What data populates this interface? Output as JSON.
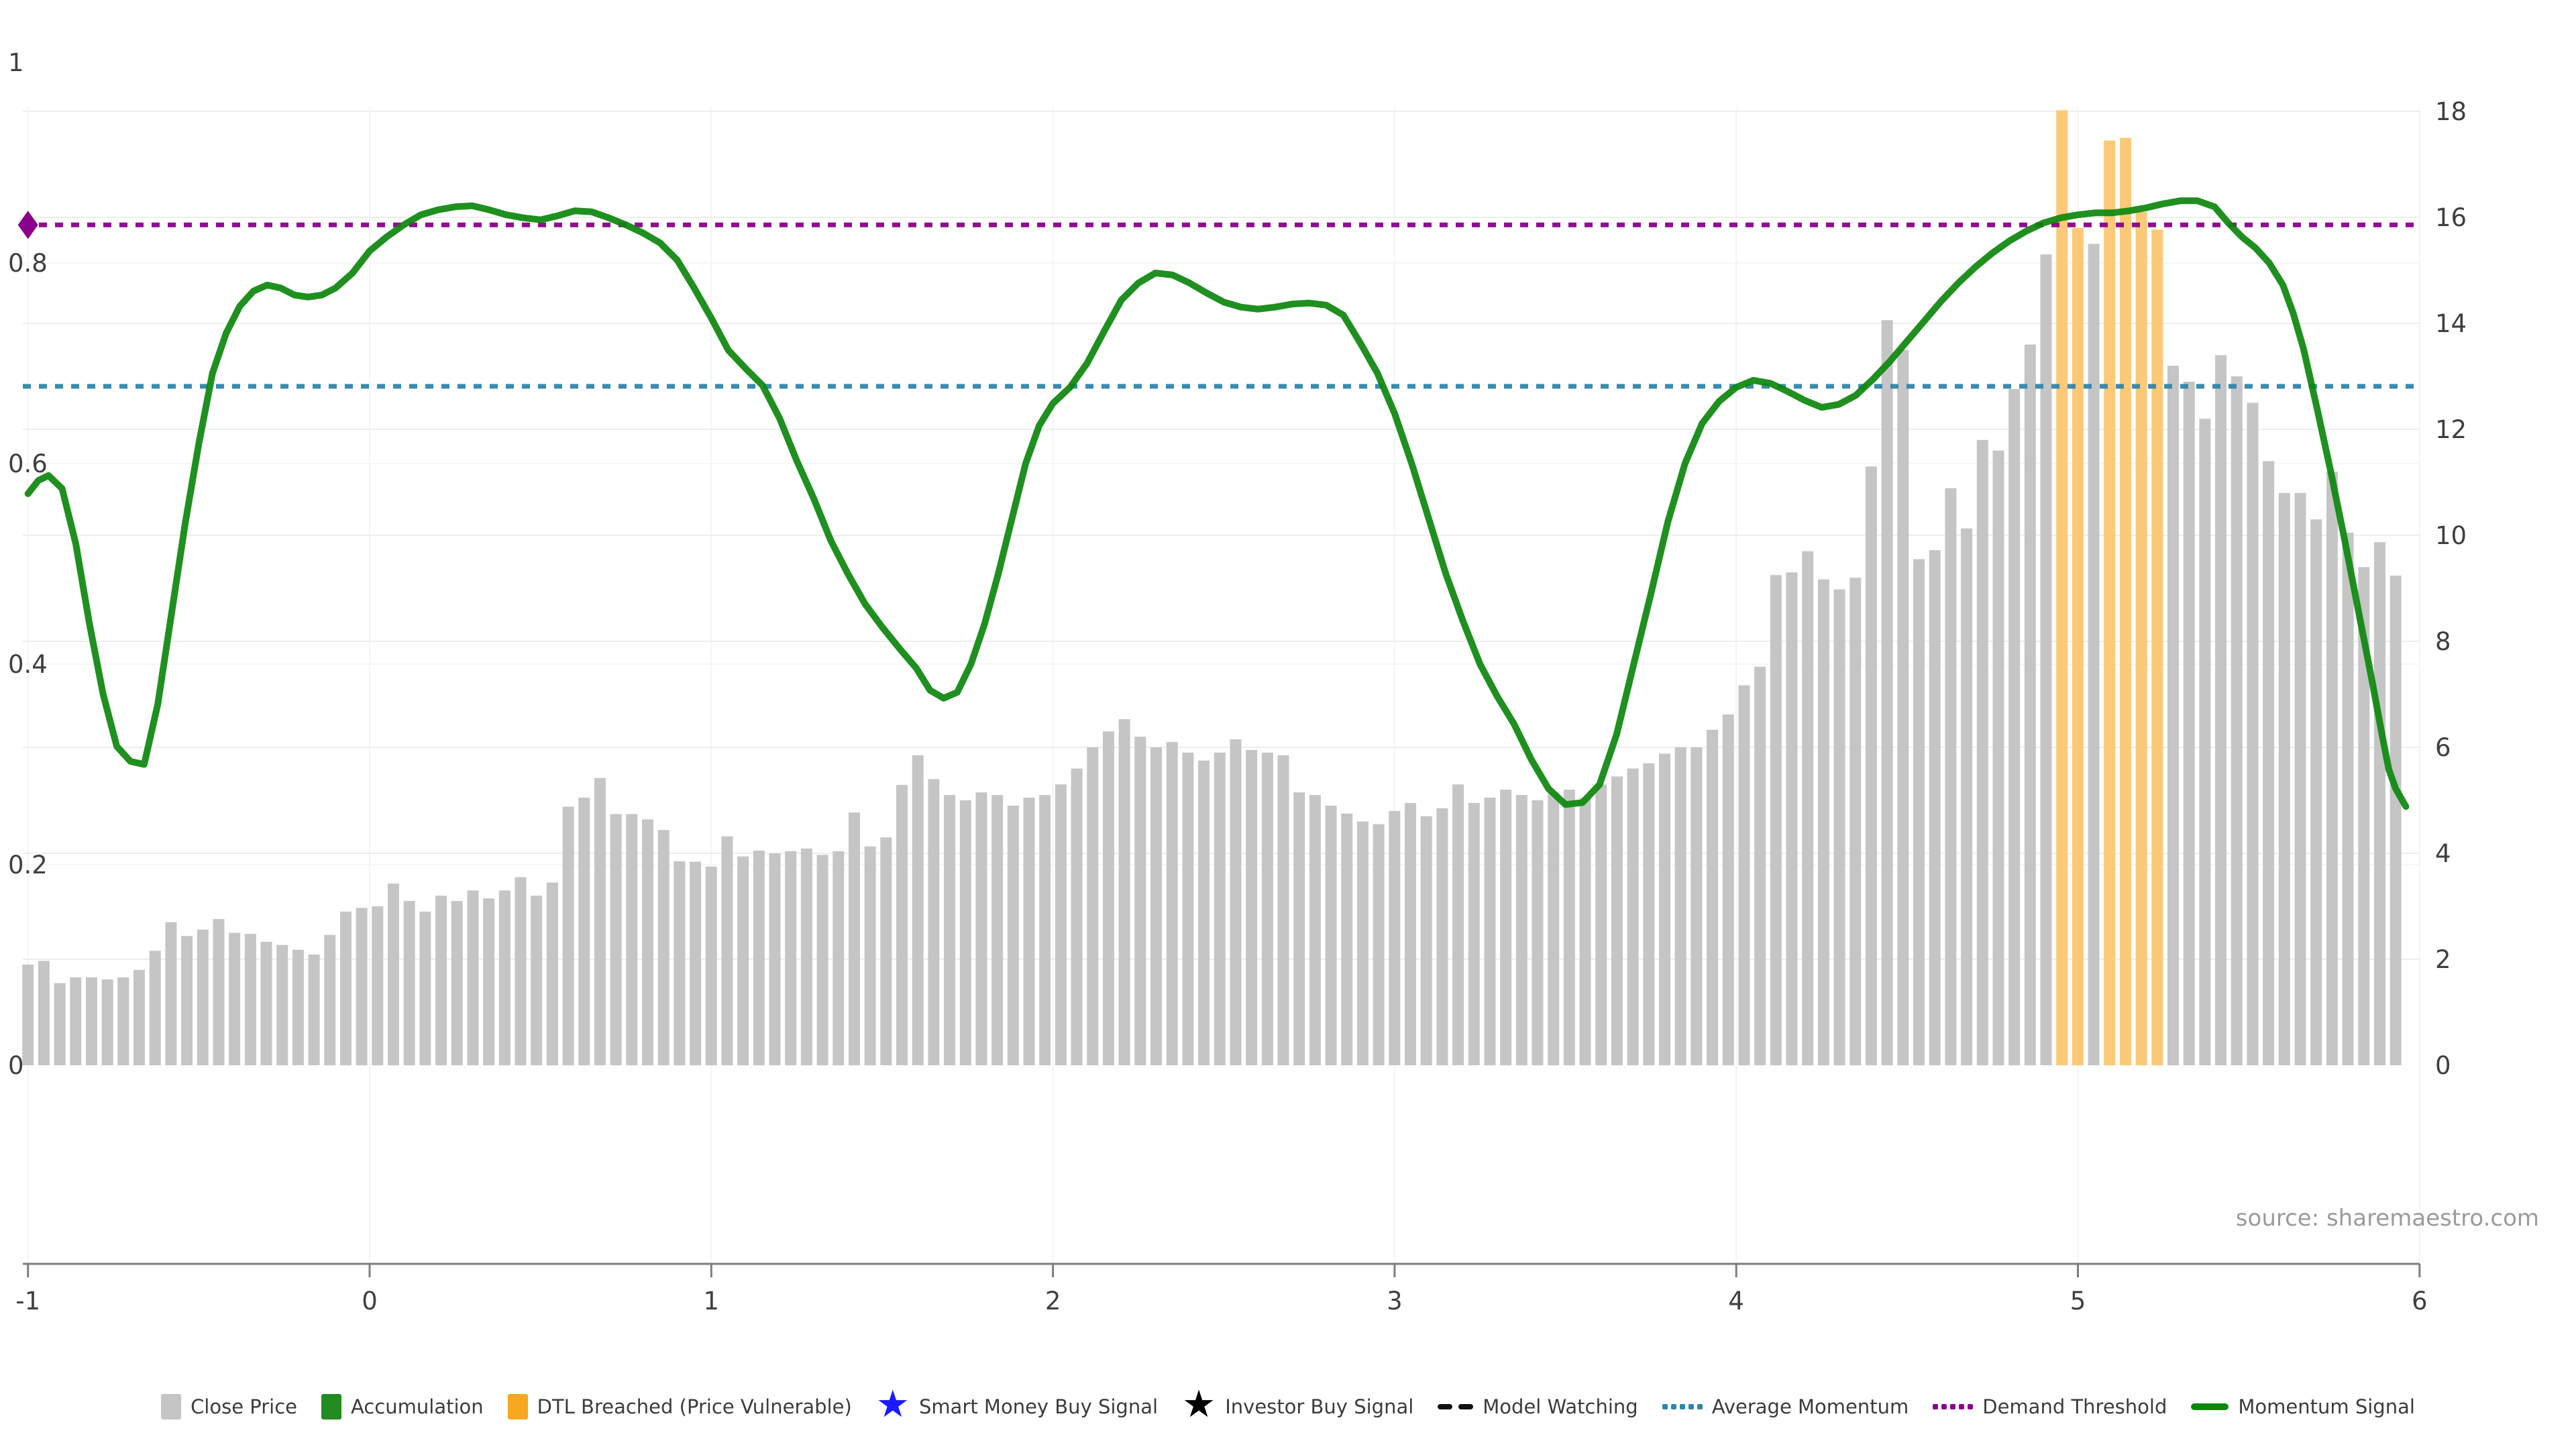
{
  "source_note": "source: sharemaestro.com",
  "colors": {
    "close_price_bar": "#c5c5c5",
    "dtl_breached_bar": "#fbc977",
    "dtl_breached_legend": "#f6a81f",
    "accumulation": "#228b22",
    "momentum_line": "#0c870c",
    "average_momentum": "#2e86ab",
    "demand_threshold": "#8b008b",
    "smart_money_star": "#1a1aff",
    "investor_star": "#000000",
    "model_watching": "#111111",
    "axis_line": "#7d7d7d",
    "axis_text": "#3f3f3f",
    "grid_right": "#eeeeee",
    "grid_left": "#f6f6f6",
    "grid_vertical": "#f0f5f5",
    "source_text": "#9b9b9b"
  },
  "chart_data": {
    "type": "bar",
    "title": "",
    "xlabel": "",
    "ylabel": "",
    "x_axis": {
      "range": [
        -1,
        6
      ],
      "ticks": [
        -1,
        0,
        1,
        2,
        3,
        4,
        5,
        6
      ],
      "tick_labels": [
        "-1",
        "0",
        "1",
        "2",
        "3",
        "4",
        "5",
        "6"
      ]
    },
    "left_axis": {
      "range": [
        0,
        1
      ],
      "ticks": [
        0,
        0.2,
        0.4,
        0.6,
        0.8,
        1
      ],
      "tick_labels": [
        "0",
        "0.2",
        "0.4",
        "0.6",
        "0.8",
        "1"
      ]
    },
    "right_axis": {
      "range": [
        0,
        18
      ],
      "ticks": [
        0,
        2,
        4,
        6,
        8,
        10,
        12,
        14,
        16,
        18
      ],
      "tick_labels": [
        "0",
        "2",
        "4",
        "6",
        "8",
        "10",
        "12",
        "14",
        "16",
        "18"
      ]
    },
    "close_price_bars": {
      "name": "Close Price",
      "axis": "right",
      "x_start": -1.0,
      "x_step": 0.04651,
      "values": [
        1.9,
        1.97,
        1.55,
        1.66,
        1.66,
        1.62,
        1.66,
        1.8,
        2.16,
        2.7,
        2.44,
        2.56,
        2.76,
        2.5,
        2.48,
        2.33,
        2.27,
        2.18,
        2.09,
        2.46,
        2.9,
        2.97,
        3.0,
        3.43,
        3.1,
        2.9,
        3.2,
        3.1,
        3.3,
        3.15,
        3.3,
        3.55,
        3.2,
        3.45,
        4.88,
        5.05,
        5.42,
        4.74,
        4.74,
        4.64,
        4.44,
        3.85,
        3.84,
        3.75,
        4.32,
        3.94,
        4.05,
        4.0,
        4.04,
        4.09,
        3.97,
        4.04,
        4.77,
        4.13,
        4.3,
        5.29,
        5.85,
        5.4,
        5.1,
        5.0,
        5.15,
        5.1,
        4.9,
        5.05,
        5.1,
        5.3,
        5.6,
        6.0,
        6.3,
        6.53,
        6.2,
        6.0,
        6.1,
        5.9,
        5.75,
        5.9,
        6.15,
        5.95,
        5.9,
        5.85,
        5.15,
        5.1,
        4.9,
        4.75,
        4.6,
        4.55,
        4.8,
        4.95,
        4.7,
        4.85,
        5.3,
        4.95,
        5.05,
        5.2,
        5.1,
        5.0,
        5.15,
        5.2,
        5.05,
        5.3,
        5.45,
        5.6,
        5.7,
        5.88,
        6.0,
        6.0,
        6.33,
        6.62,
        7.17,
        7.52,
        9.25,
        9.3,
        9.7,
        9.17,
        8.98,
        9.2,
        11.3,
        14.06,
        13.5,
        9.55,
        9.72,
        10.89,
        10.13,
        11.8,
        11.6,
        12.76,
        13.6,
        15.3,
        18.02,
        15.8,
        15.5,
        17.45,
        17.5,
        16.1,
        15.77,
        13.2,
        12.9,
        12.2,
        13.4,
        13.0,
        12.5,
        11.4,
        10.8,
        10.8,
        10.3,
        11.2,
        10.05,
        9.4,
        9.87,
        9.24
      ],
      "dtl_breached_indices": [
        128,
        129,
        131,
        132,
        133,
        134
      ]
    },
    "momentum_signal": {
      "name": "Momentum Signal",
      "axis": "left",
      "points": [
        [
          -1.0,
          0.57
        ],
        [
          -0.97,
          0.583
        ],
        [
          -0.94,
          0.588
        ],
        [
          -0.9,
          0.575
        ],
        [
          -0.86,
          0.52
        ],
        [
          -0.82,
          0.44
        ],
        [
          -0.78,
          0.37
        ],
        [
          -0.74,
          0.318
        ],
        [
          -0.7,
          0.303
        ],
        [
          -0.66,
          0.3
        ],
        [
          -0.62,
          0.36
        ],
        [
          -0.58,
          0.45
        ],
        [
          -0.54,
          0.54
        ],
        [
          -0.5,
          0.62
        ],
        [
          -0.46,
          0.69
        ],
        [
          -0.42,
          0.73
        ],
        [
          -0.38,
          0.757
        ],
        [
          -0.34,
          0.772
        ],
        [
          -0.3,
          0.778
        ],
        [
          -0.26,
          0.775
        ],
        [
          -0.22,
          0.768
        ],
        [
          -0.18,
          0.766
        ],
        [
          -0.14,
          0.768
        ],
        [
          -0.1,
          0.775
        ],
        [
          -0.05,
          0.79
        ],
        [
          0.0,
          0.812
        ],
        [
          0.05,
          0.826
        ],
        [
          0.1,
          0.838
        ],
        [
          0.15,
          0.848
        ],
        [
          0.2,
          0.853
        ],
        [
          0.25,
          0.856
        ],
        [
          0.3,
          0.857
        ],
        [
          0.35,
          0.853
        ],
        [
          0.4,
          0.848
        ],
        [
          0.45,
          0.845
        ],
        [
          0.5,
          0.843
        ],
        [
          0.55,
          0.847
        ],
        [
          0.6,
          0.852
        ],
        [
          0.65,
          0.851
        ],
        [
          0.7,
          0.845
        ],
        [
          0.75,
          0.838
        ],
        [
          0.8,
          0.83
        ],
        [
          0.85,
          0.82
        ],
        [
          0.9,
          0.803
        ],
        [
          0.95,
          0.775
        ],
        [
          1.0,
          0.745
        ],
        [
          1.05,
          0.713
        ],
        [
          1.1,
          0.695
        ],
        [
          1.15,
          0.678
        ],
        [
          1.2,
          0.645
        ],
        [
          1.25,
          0.603
        ],
        [
          1.3,
          0.565
        ],
        [
          1.35,
          0.523
        ],
        [
          1.4,
          0.49
        ],
        [
          1.45,
          0.46
        ],
        [
          1.5,
          0.437
        ],
        [
          1.55,
          0.416
        ],
        [
          1.6,
          0.396
        ],
        [
          1.64,
          0.374
        ],
        [
          1.68,
          0.366
        ],
        [
          1.72,
          0.372
        ],
        [
          1.76,
          0.4
        ],
        [
          1.8,
          0.44
        ],
        [
          1.84,
          0.49
        ],
        [
          1.88,
          0.545
        ],
        [
          1.92,
          0.6
        ],
        [
          1.96,
          0.638
        ],
        [
          2.0,
          0.66
        ],
        [
          2.05,
          0.676
        ],
        [
          2.1,
          0.7
        ],
        [
          2.15,
          0.732
        ],
        [
          2.2,
          0.763
        ],
        [
          2.25,
          0.78
        ],
        [
          2.3,
          0.79
        ],
        [
          2.35,
          0.788
        ],
        [
          2.4,
          0.78
        ],
        [
          2.45,
          0.77
        ],
        [
          2.5,
          0.761
        ],
        [
          2.55,
          0.756
        ],
        [
          2.6,
          0.754
        ],
        [
          2.65,
          0.756
        ],
        [
          2.7,
          0.759
        ],
        [
          2.75,
          0.76
        ],
        [
          2.8,
          0.758
        ],
        [
          2.85,
          0.748
        ],
        [
          2.9,
          0.72
        ],
        [
          2.95,
          0.69
        ],
        [
          3.0,
          0.65
        ],
        [
          3.05,
          0.6
        ],
        [
          3.1,
          0.545
        ],
        [
          3.15,
          0.49
        ],
        [
          3.2,
          0.443
        ],
        [
          3.25,
          0.4
        ],
        [
          3.3,
          0.368
        ],
        [
          3.35,
          0.34
        ],
        [
          3.4,
          0.305
        ],
        [
          3.45,
          0.276
        ],
        [
          3.5,
          0.26
        ],
        [
          3.55,
          0.262
        ],
        [
          3.6,
          0.28
        ],
        [
          3.65,
          0.33
        ],
        [
          3.7,
          0.4
        ],
        [
          3.75,
          0.47
        ],
        [
          3.8,
          0.542
        ],
        [
          3.85,
          0.6
        ],
        [
          3.9,
          0.64
        ],
        [
          3.95,
          0.662
        ],
        [
          4.0,
          0.676
        ],
        [
          4.05,
          0.683
        ],
        [
          4.1,
          0.68
        ],
        [
          4.15,
          0.672
        ],
        [
          4.2,
          0.663
        ],
        [
          4.25,
          0.656
        ],
        [
          4.3,
          0.659
        ],
        [
          4.35,
          0.668
        ],
        [
          4.4,
          0.684
        ],
        [
          4.45,
          0.702
        ],
        [
          4.5,
          0.722
        ],
        [
          4.55,
          0.742
        ],
        [
          4.6,
          0.762
        ],
        [
          4.65,
          0.78
        ],
        [
          4.7,
          0.796
        ],
        [
          4.75,
          0.81
        ],
        [
          4.8,
          0.822
        ],
        [
          4.85,
          0.832
        ],
        [
          4.9,
          0.84
        ],
        [
          4.95,
          0.845
        ],
        [
          5.0,
          0.848
        ],
        [
          5.05,
          0.85
        ],
        [
          5.1,
          0.85
        ],
        [
          5.15,
          0.852
        ],
        [
          5.2,
          0.855
        ],
        [
          5.25,
          0.859
        ],
        [
          5.3,
          0.862
        ],
        [
          5.35,
          0.862
        ],
        [
          5.4,
          0.856
        ],
        [
          5.44,
          0.84
        ],
        [
          5.48,
          0.826
        ],
        [
          5.52,
          0.815
        ],
        [
          5.56,
          0.8
        ],
        [
          5.6,
          0.778
        ],
        [
          5.63,
          0.75
        ],
        [
          5.66,
          0.715
        ],
        [
          5.7,
          0.655
        ],
        [
          5.74,
          0.592
        ],
        [
          5.78,
          0.525
        ],
        [
          5.82,
          0.455
        ],
        [
          5.86,
          0.385
        ],
        [
          5.89,
          0.33
        ],
        [
          5.91,
          0.295
        ],
        [
          5.93,
          0.276
        ],
        [
          5.96,
          0.258
        ]
      ]
    },
    "average_momentum": {
      "name": "Average Momentum",
      "axis": "left",
      "value": 0.677
    },
    "demand_threshold": {
      "name": "Demand Threshold",
      "axis": "left",
      "value": 0.838,
      "marker": "diamond",
      "marker_x": -1
    },
    "grid": true,
    "legend_position": "bottom"
  },
  "legend": {
    "items": [
      {
        "id": "close-price",
        "label": "Close Price",
        "swatch": "square",
        "color": "#c5c5c5"
      },
      {
        "id": "accumulation",
        "label": "Accumulation",
        "swatch": "square",
        "color": "#228b22"
      },
      {
        "id": "dtl-breached",
        "label": "DTL Breached (Price Vulnerable)",
        "swatch": "square",
        "color": "#f6a81f"
      },
      {
        "id": "smart-money-buy",
        "label": "Smart Money Buy Signal",
        "swatch": "star",
        "color": "#1a1aff"
      },
      {
        "id": "investor-buy",
        "label": "Investor Buy Signal",
        "swatch": "star",
        "color": "#000000"
      },
      {
        "id": "model-watching",
        "label": "Model Watching",
        "swatch": "dashes",
        "color": "#111111"
      },
      {
        "id": "average-momentum",
        "label": "Average Momentum",
        "swatch": "dots",
        "color": "#2e86ab"
      },
      {
        "id": "demand-threshold",
        "label": "Demand Threshold",
        "swatch": "dots",
        "color": "#8b008b"
      },
      {
        "id": "momentum-signal",
        "label": "Momentum Signal",
        "swatch": "line",
        "color": "#0c870c"
      }
    ]
  }
}
